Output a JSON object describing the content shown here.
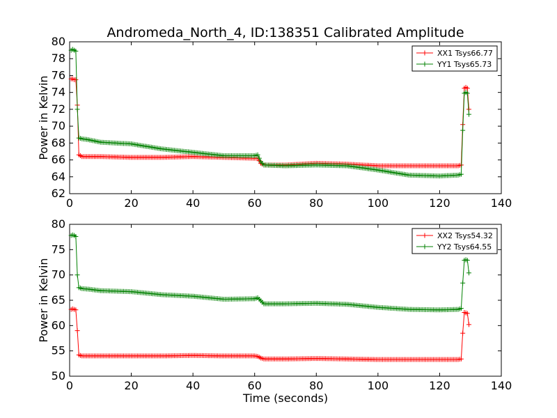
{
  "colors": {
    "xx": "#ff0000",
    "yy": "#008000",
    "background": "#ffffff",
    "axes": "#000000"
  },
  "chart_data": [
    {
      "type": "line",
      "title": "Andromeda_North_4, ID:138351 Calibrated Amplitude",
      "xlabel": "",
      "ylabel": "Power in Kelvin",
      "xlim": [
        0,
        140
      ],
      "ylim": [
        62,
        80
      ],
      "xticks": [
        0,
        20,
        40,
        60,
        80,
        100,
        120,
        140
      ],
      "yticks": [
        62,
        64,
        66,
        68,
        70,
        72,
        74,
        76,
        78,
        80
      ],
      "grid": false,
      "legend_position": "top-right",
      "series": [
        {
          "name": "XX1 Tsys66.77",
          "color": "#ff0000",
          "x": [
            0.5,
            1,
            1.5,
            2,
            2.5,
            3,
            4,
            6,
            10,
            20,
            30,
            40,
            50,
            60,
            61,
            62,
            63,
            70,
            80,
            90,
            100,
            110,
            120,
            126,
            127,
            127.5,
            128,
            128.5,
            129,
            129.5
          ],
          "y": [
            75.6,
            75.6,
            75.5,
            75.5,
            72.5,
            66.6,
            66.4,
            66.4,
            66.4,
            66.3,
            66.3,
            66.4,
            66.3,
            66.2,
            66.2,
            65.6,
            65.4,
            65.4,
            65.6,
            65.5,
            65.3,
            65.3,
            65.3,
            65.3,
            65.4,
            70.2,
            74.5,
            74.6,
            74.5,
            72.0
          ]
        },
        {
          "name": "YY1 Tsys65.73",
          "color": "#008000",
          "x": [
            0.5,
            1,
            1.5,
            2,
            2.5,
            3,
            4,
            6,
            10,
            20,
            30,
            40,
            50,
            60,
            61,
            62,
            63,
            70,
            80,
            90,
            100,
            110,
            120,
            126,
            127,
            127.5,
            128,
            128.5,
            129,
            129.5
          ],
          "y": [
            79.0,
            79.1,
            79.0,
            78.9,
            72.0,
            68.6,
            68.5,
            68.4,
            68.1,
            67.9,
            67.3,
            66.9,
            66.5,
            66.5,
            66.6,
            65.8,
            65.4,
            65.3,
            65.4,
            65.3,
            64.8,
            64.2,
            64.1,
            64.2,
            64.3,
            69.5,
            73.9,
            74.0,
            73.9,
            71.4
          ]
        }
      ]
    },
    {
      "type": "line",
      "title": "",
      "xlabel": "Time (seconds)",
      "ylabel": "Power in Kelvin",
      "xlim": [
        0,
        140
      ],
      "ylim": [
        50,
        80
      ],
      "xticks": [
        0,
        20,
        40,
        60,
        80,
        100,
        120,
        140
      ],
      "yticks": [
        50,
        55,
        60,
        65,
        70,
        75,
        80
      ],
      "grid": false,
      "legend_position": "top-right",
      "series": [
        {
          "name": "XX2 Tsys54.32",
          "color": "#ff0000",
          "x": [
            0.5,
            1,
            1.5,
            2,
            2.5,
            3,
            4,
            6,
            10,
            20,
            30,
            40,
            50,
            60,
            61,
            62,
            63,
            70,
            80,
            90,
            100,
            110,
            120,
            126,
            127,
            127.5,
            128,
            128.5,
            129,
            129.5
          ],
          "y": [
            63.2,
            63.3,
            63.2,
            63.1,
            59.0,
            54.2,
            54.0,
            54.0,
            54.0,
            54.0,
            54.0,
            54.1,
            54.0,
            54.0,
            53.9,
            53.6,
            53.4,
            53.4,
            53.5,
            53.4,
            53.3,
            53.3,
            53.3,
            53.3,
            53.4,
            58.5,
            62.6,
            62.5,
            62.4,
            60.2
          ]
        },
        {
          "name": "YY2 Tsys64.55",
          "color": "#008000",
          "x": [
            0.5,
            1,
            1.5,
            2,
            2.5,
            3,
            4,
            6,
            10,
            20,
            30,
            40,
            50,
            60,
            61,
            62,
            63,
            70,
            80,
            90,
            100,
            110,
            120,
            126,
            127,
            127.5,
            128,
            128.5,
            129,
            129.5
          ],
          "y": [
            77.8,
            77.9,
            77.8,
            77.6,
            70.0,
            67.5,
            67.3,
            67.2,
            66.9,
            66.7,
            66.1,
            65.8,
            65.2,
            65.3,
            65.5,
            64.9,
            64.3,
            64.3,
            64.4,
            64.2,
            63.6,
            63.2,
            63.1,
            63.2,
            63.4,
            68.4,
            72.9,
            73.0,
            72.9,
            70.4
          ]
        }
      ]
    }
  ]
}
